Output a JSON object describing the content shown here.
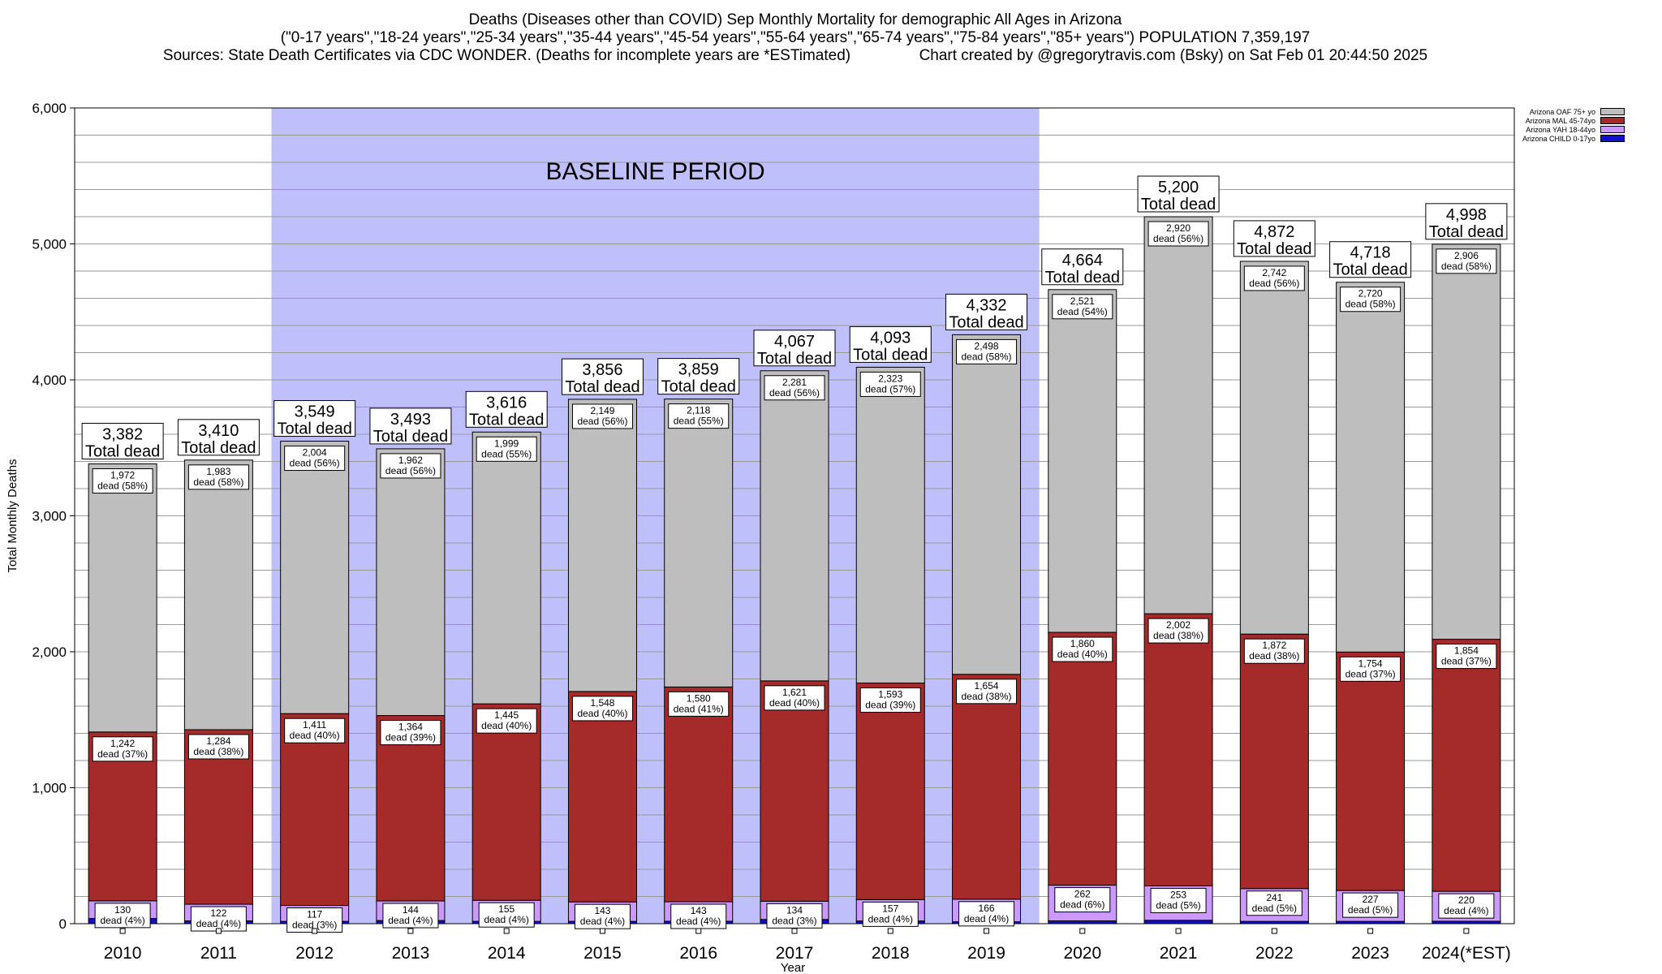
{
  "header": {
    "line1": "Deaths (Diseases other than COVID) Sep Monthly Mortality for demographic All Ages in Arizona",
    "line2": "(\"0-17 years\",\"18-24 years\",\"25-34 years\",\"35-44 years\",\"45-54 years\",\"55-64 years\",\"65-74 years\",\"75-84 years\",\"85+ years\") POPULATION 7,359,197",
    "line3_left": "Sources: State Death Certificates via CDC WONDER. (Deaths for incomplete years are *ESTimated)",
    "line3_right": "Chart created by @gregorytravis.com (Bsky) on Sat Feb 01 20:44:50 2025"
  },
  "chart_data": {
    "type": "bar",
    "stacked": true,
    "title": "Deaths (Diseases other than COVID) Sep Monthly Mortality for demographic All Ages in Arizona",
    "xlabel": "Year",
    "ylabel": "Total Monthly Deaths",
    "ylim": [
      0,
      6000
    ],
    "yticks": [
      0,
      1000,
      2000,
      3000,
      4000,
      5000,
      6000
    ],
    "ytick_labels": [
      "0",
      "1,000",
      "2,000",
      "3,000",
      "4,000",
      "5,000",
      "6,000"
    ],
    "grid": true,
    "legend_position": "top-right",
    "categories": [
      "2010",
      "2011",
      "2012",
      "2013",
      "2014",
      "2015",
      "2016",
      "2017",
      "2018",
      "2019",
      "2020",
      "2021",
      "2022",
      "2023",
      "2024(*EST)"
    ],
    "baseline_band": {
      "label": "BASELINE PERIOD",
      "from": "2012",
      "to": "2019",
      "color": "#bfbffc"
    },
    "series": [
      {
        "name": "Arizona CHILD 0-17yo",
        "color": "#1010cc",
        "values": [
          38,
          21,
          17,
          23,
          17,
          17,
          18,
          31,
          20,
          14,
          21,
          25,
          17,
          17,
          18
        ]
      },
      {
        "name": "Arizona YAH 18-44yo",
        "color": "#cc99ff",
        "values": [
          130,
          122,
          117,
          144,
          155,
          143,
          143,
          134,
          157,
          166,
          262,
          253,
          241,
          227,
          220
        ],
        "labels": [
          "130\ndead (4%)",
          "122\ndead (4%)",
          "117\ndead (3%)",
          "144\ndead (4%)",
          "155\ndead (4%)",
          "143\ndead (4%)",
          "143\ndead (4%)",
          "134\ndead (3%)",
          "157\ndead (4%)",
          "166\ndead (4%)",
          "262\ndead (6%)",
          "253\ndead (5%)",
          "241\ndead (5%)",
          "227\ndead (5%)",
          "220\ndead (4%)"
        ]
      },
      {
        "name": "Arizona MAL 45-74yo",
        "color": "#a52a2a",
        "values": [
          1242,
          1284,
          1411,
          1364,
          1445,
          1548,
          1580,
          1621,
          1593,
          1654,
          1860,
          2002,
          1872,
          1754,
          1854
        ],
        "labels": [
          "1,242\ndead (37%)",
          "1,284\ndead (38%)",
          "1,411\ndead (40%)",
          "1,364\ndead (39%)",
          "1,445\ndead (40%)",
          "1,548\ndead (40%)",
          "1,580\ndead (41%)",
          "1,621\ndead (40%)",
          "1,593\ndead (39%)",
          "1,654\ndead (38%)",
          "1,860\ndead (40%)",
          "2,002\ndead (38%)",
          "1,872\ndead (38%)",
          "1,754\ndead (37%)",
          "1,854\ndead (37%)"
        ]
      },
      {
        "name": "Arizona OAF 75+ yo",
        "color": "#bebebe",
        "values": [
          1972,
          1983,
          2004,
          1962,
          1999,
          2149,
          2118,
          2281,
          2323,
          2498,
          2521,
          2920,
          2742,
          2720,
          2906
        ],
        "labels": [
          "1,972\ndead (58%)",
          "1,983\ndead (58%)",
          "2,004\ndead (56%)",
          "1,962\ndead (56%)",
          "1,999\ndead (55%)",
          "2,149\ndead (56%)",
          "2,118\ndead (55%)",
          "2,281\ndead (56%)",
          "2,323\ndead (57%)",
          "2,498\ndead (58%)",
          "2,521\ndead (54%)",
          "2,920\ndead (56%)",
          "2,742\ndead (56%)",
          "2,720\ndead (58%)",
          "2,906\ndead (58%)"
        ]
      }
    ],
    "totals": [
      3382,
      3410,
      3549,
      3493,
      3616,
      3856,
      3859,
      4067,
      4093,
      4332,
      4664,
      5200,
      4872,
      4718,
      4998
    ],
    "total_labels": [
      "3,382\nTotal dead",
      "3,410\nTotal dead",
      "3,549\nTotal dead",
      "3,493\nTotal dead",
      "3,616\nTotal dead",
      "3,856\nTotal dead",
      "3,859\nTotal dead",
      "4,067\nTotal dead",
      "4,093\nTotal dead",
      "4,332\nTotal dead",
      "4,664\nTotal dead",
      "5,200\nTotal dead",
      "4,872\nTotal dead",
      "4,718\nTotal dead",
      "4,998\nTotal dead"
    ]
  }
}
